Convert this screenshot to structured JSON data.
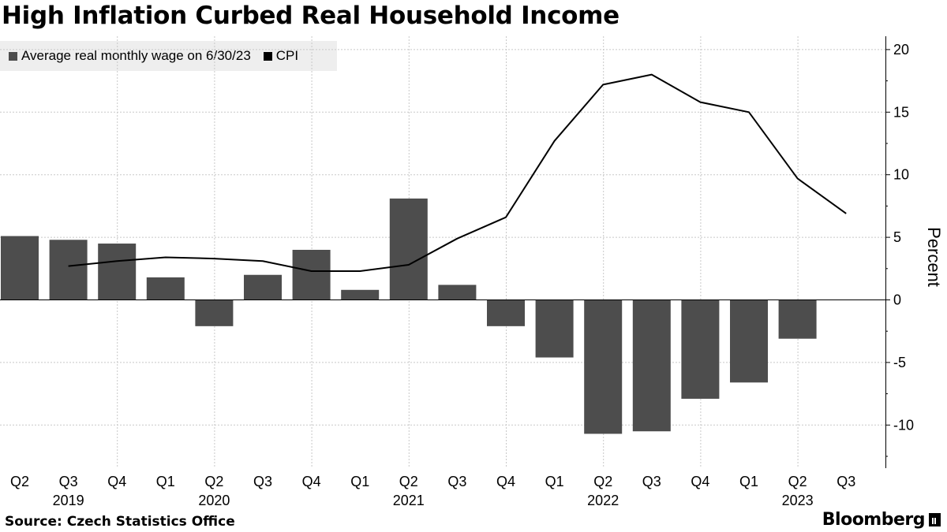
{
  "chart_data": {
    "type": "bar",
    "title": "High Inflation Curbed Real Household Income",
    "xlabel": "",
    "ylabel": "Percent",
    "ylim": [
      -13,
      21
    ],
    "yticks": [
      20,
      15,
      10,
      5,
      0,
      -5,
      -10
    ],
    "ytick_labels": [
      "20",
      "15",
      "10",
      "5",
      "0",
      "-5",
      "-10"
    ],
    "grid": true,
    "legend_position": "top-left",
    "quarter_labels": [
      "Q2",
      "Q3",
      "Q4",
      "Q1",
      "Q2",
      "Q3",
      "Q4",
      "Q1",
      "Q2",
      "Q3",
      "Q4",
      "Q1",
      "Q2",
      "Q3",
      "Q4",
      "Q1",
      "Q2",
      "Q3"
    ],
    "year_labels": [
      {
        "label": "2019",
        "under_index": 1
      },
      {
        "label": "2020",
        "under_index": 4
      },
      {
        "label": "2021",
        "under_index": 8
      },
      {
        "label": "2022",
        "under_index": 12
      },
      {
        "label": "2023",
        "under_index": 16
      }
    ],
    "series": [
      {
        "name": "Average real monthly wage on 6/30/23",
        "kind": "bar",
        "color": "#4d4d4d",
        "values": [
          5.1,
          4.8,
          4.5,
          1.8,
          -2.1,
          2.0,
          4.0,
          0.8,
          8.1,
          1.2,
          -2.1,
          -4.6,
          -10.7,
          -10.5,
          -7.9,
          -6.6,
          -3.1,
          null
        ]
      },
      {
        "name": "CPI",
        "kind": "line",
        "color": "#000000",
        "values": [
          null,
          2.7,
          3.1,
          3.4,
          3.3,
          3.1,
          2.3,
          2.3,
          2.8,
          4.9,
          6.6,
          12.7,
          17.2,
          18.0,
          15.8,
          15.0,
          9.7,
          6.9
        ]
      }
    ]
  },
  "legend": {
    "items": [
      {
        "label": "Average real monthly wage on 6/30/23",
        "color": "#4d4d4d"
      },
      {
        "label": "CPI",
        "color": "#000000"
      }
    ]
  },
  "footer": {
    "source": "Source: Czech Statistics Office",
    "brand": "Bloomberg"
  }
}
